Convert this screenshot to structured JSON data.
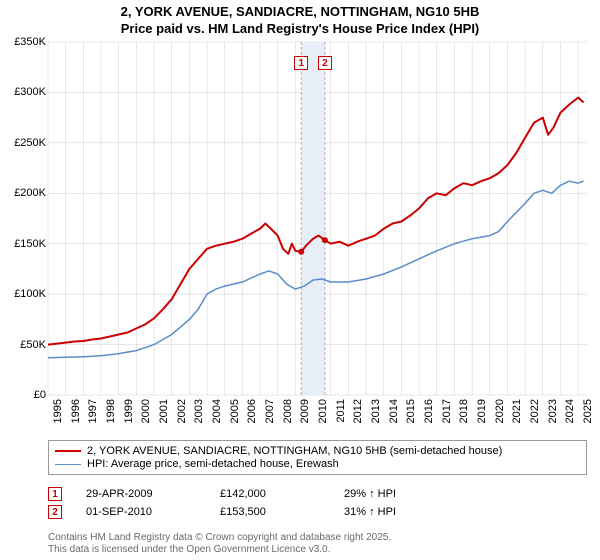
{
  "title_line1": "2, YORK AVENUE, SANDIACRE, NOTTINGHAM, NG10 5HB",
  "title_line2": "Price paid vs. HM Land Registry's House Price Index (HPI)",
  "chart": {
    "type": "line",
    "background_color": "#ffffff",
    "grid_color": "#b0b0b0",
    "grid_width": 0.3,
    "y_axis": {
      "min": 0,
      "max": 350000,
      "step": 50000,
      "labels": [
        "£0",
        "£50K",
        "£100K",
        "£150K",
        "£200K",
        "£250K",
        "£300K",
        "£350K"
      ],
      "fontsize": 11
    },
    "x_axis": {
      "min": 1995,
      "max": 2025.5,
      "step": 1,
      "labels": [
        "1995",
        "1996",
        "1997",
        "1998",
        "1999",
        "2000",
        "2001",
        "2002",
        "2003",
        "2004",
        "2005",
        "2006",
        "2007",
        "2008",
        "2009",
        "2010",
        "2011",
        "2012",
        "2013",
        "2014",
        "2015",
        "2016",
        "2017",
        "2018",
        "2019",
        "2020",
        "2021",
        "2022",
        "2023",
        "2024",
        "2025"
      ],
      "fontsize": 11
    },
    "highlight_band": {
      "x_start": 2009.33,
      "x_end": 2010.67,
      "fill": "#e8eef8"
    },
    "vlines": [
      {
        "x": 2009.33,
        "color": "#b0b0b0",
        "dash": "3,2"
      },
      {
        "x": 2010.67,
        "color": "#b0b0b0",
        "dash": "3,2"
      }
    ],
    "markers_on_plot": [
      {
        "label": "1",
        "x": 2009.33,
        "y_pos": 0.04
      },
      {
        "label": "2",
        "x": 2010.67,
        "y_pos": 0.04
      }
    ],
    "series": [
      {
        "id": "price_paid",
        "color": "#cc0000",
        "width": 2,
        "legend": "2, YORK AVENUE, SANDIACRE, NOTTINGHAM, NG10 5HB (semi-detached house)",
        "data": [
          [
            1995,
            50000
          ],
          [
            1995.5,
            51000
          ],
          [
            1996,
            52000
          ],
          [
            1996.5,
            53000
          ],
          [
            1997,
            53500
          ],
          [
            1997.5,
            55000
          ],
          [
            1998,
            56000
          ],
          [
            1998.5,
            58000
          ],
          [
            1999,
            60000
          ],
          [
            1999.5,
            62000
          ],
          [
            2000,
            66000
          ],
          [
            2000.5,
            70000
          ],
          [
            2001,
            76000
          ],
          [
            2001.5,
            85000
          ],
          [
            2002,
            95000
          ],
          [
            2002.5,
            110000
          ],
          [
            2003,
            125000
          ],
          [
            2003.5,
            135000
          ],
          [
            2004,
            145000
          ],
          [
            2004.5,
            148000
          ],
          [
            2005,
            150000
          ],
          [
            2005.5,
            152000
          ],
          [
            2006,
            155000
          ],
          [
            2006.5,
            160000
          ],
          [
            2007,
            165000
          ],
          [
            2007.3,
            170000
          ],
          [
            2007.6,
            165000
          ],
          [
            2008,
            158000
          ],
          [
            2008.3,
            145000
          ],
          [
            2008.6,
            140000
          ],
          [
            2008.8,
            150000
          ],
          [
            2009,
            143000
          ],
          [
            2009.33,
            142000
          ],
          [
            2009.6,
            148000
          ],
          [
            2010,
            155000
          ],
          [
            2010.3,
            158000
          ],
          [
            2010.67,
            153500
          ],
          [
            2011,
            150000
          ],
          [
            2011.5,
            152000
          ],
          [
            2012,
            148000
          ],
          [
            2012.5,
            152000
          ],
          [
            2013,
            155000
          ],
          [
            2013.5,
            158000
          ],
          [
            2014,
            165000
          ],
          [
            2014.5,
            170000
          ],
          [
            2015,
            172000
          ],
          [
            2015.5,
            178000
          ],
          [
            2016,
            185000
          ],
          [
            2016.5,
            195000
          ],
          [
            2017,
            200000
          ],
          [
            2017.5,
            198000
          ],
          [
            2018,
            205000
          ],
          [
            2018.5,
            210000
          ],
          [
            2019,
            208000
          ],
          [
            2019.5,
            212000
          ],
          [
            2020,
            215000
          ],
          [
            2020.5,
            220000
          ],
          [
            2021,
            228000
          ],
          [
            2021.5,
            240000
          ],
          [
            2022,
            255000
          ],
          [
            2022.5,
            270000
          ],
          [
            2023,
            275000
          ],
          [
            2023.3,
            258000
          ],
          [
            2023.6,
            265000
          ],
          [
            2024,
            280000
          ],
          [
            2024.5,
            288000
          ],
          [
            2025,
            295000
          ],
          [
            2025.3,
            290000
          ]
        ]
      },
      {
        "id": "hpi",
        "color": "#5b8cc9",
        "width": 1.5,
        "legend": "HPI: Average price, semi-detached house, Erewash",
        "data": [
          [
            1995,
            37000
          ],
          [
            1996,
            37500
          ],
          [
            1997,
            38000
          ],
          [
            1998,
            39000
          ],
          [
            1999,
            41000
          ],
          [
            2000,
            44000
          ],
          [
            2001,
            50000
          ],
          [
            2002,
            60000
          ],
          [
            2003,
            75000
          ],
          [
            2003.5,
            85000
          ],
          [
            2004,
            100000
          ],
          [
            2004.5,
            105000
          ],
          [
            2005,
            108000
          ],
          [
            2006,
            112000
          ],
          [
            2007,
            120000
          ],
          [
            2007.5,
            123000
          ],
          [
            2008,
            120000
          ],
          [
            2008.5,
            110000
          ],
          [
            2009,
            105000
          ],
          [
            2009.5,
            108000
          ],
          [
            2010,
            114000
          ],
          [
            2010.5,
            115000
          ],
          [
            2011,
            112000
          ],
          [
            2012,
            112000
          ],
          [
            2013,
            115000
          ],
          [
            2014,
            120000
          ],
          [
            2015,
            127000
          ],
          [
            2016,
            135000
          ],
          [
            2017,
            143000
          ],
          [
            2018,
            150000
          ],
          [
            2019,
            155000
          ],
          [
            2020,
            158000
          ],
          [
            2020.5,
            162000
          ],
          [
            2021,
            172000
          ],
          [
            2022,
            190000
          ],
          [
            2022.5,
            200000
          ],
          [
            2023,
            203000
          ],
          [
            2023.5,
            200000
          ],
          [
            2024,
            208000
          ],
          [
            2024.5,
            212000
          ],
          [
            2025,
            210000
          ],
          [
            2025.3,
            212000
          ]
        ]
      }
    ],
    "sale_points": {
      "color": "#cc0000",
      "radius": 3,
      "points": [
        [
          2009.33,
          142000
        ],
        [
          2010.67,
          153500
        ]
      ]
    }
  },
  "legend_header": {
    "fontsize": 11
  },
  "sales": [
    {
      "badge": "1",
      "date": "29-APR-2009",
      "price": "£142,000",
      "hpi_diff": "29% ↑ HPI"
    },
    {
      "badge": "2",
      "date": "01-SEP-2010",
      "price": "£153,500",
      "hpi_diff": "31% ↑ HPI"
    }
  ],
  "footer_line1": "Contains HM Land Registry data © Crown copyright and database right 2025.",
  "footer_line2": "This data is licensed under the Open Government Licence v3.0."
}
